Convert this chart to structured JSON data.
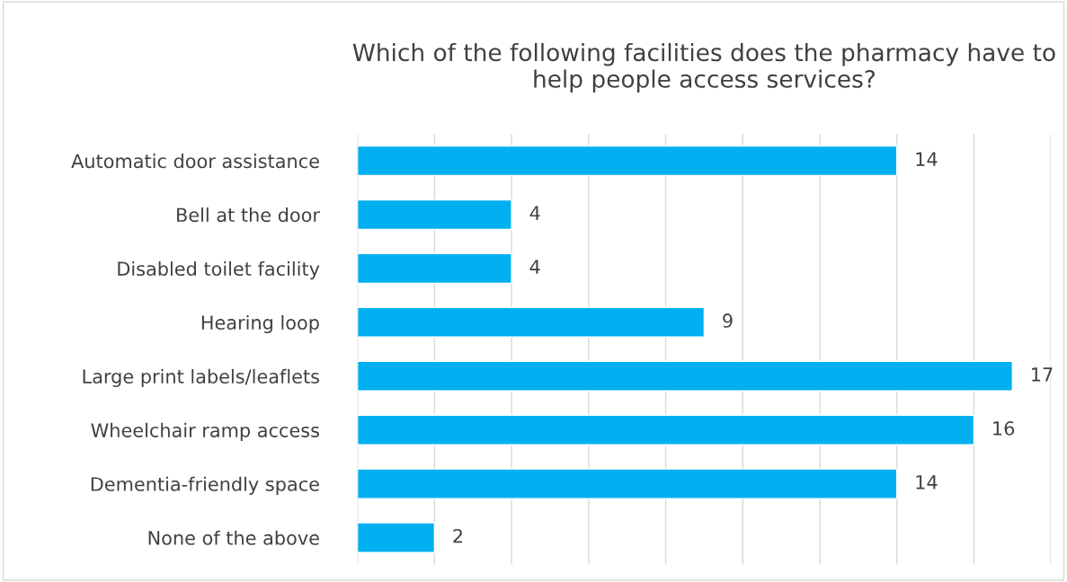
{
  "chart_data": {
    "type": "bar",
    "orientation": "horizontal",
    "title": "Which of the following facilities does the pharmacy have to help people access services?",
    "categories": [
      "Automatic door assistance",
      "Bell at the door",
      "Disabled toilet facility",
      "Hearing loop",
      "Large print labels/leaflets",
      "Wheelchair ramp access",
      "Dementia-friendly space",
      "None of the above"
    ],
    "values": [
      14,
      4,
      4,
      9,
      17,
      16,
      14,
      2
    ],
    "color": "#00b0f0",
    "xlim": [
      0,
      18
    ],
    "xticks": [
      {
        "value": 0,
        "label": null
      },
      {
        "value": 2,
        "label": null
      },
      {
        "value": 4,
        "label": null
      },
      {
        "value": 6,
        "label": null
      },
      {
        "value": 8,
        "label": null
      },
      {
        "value": 10,
        "label": null
      },
      {
        "value": 12,
        "label": null
      },
      {
        "value": 14,
        "label": null
      },
      {
        "value": 16,
        "label": null
      },
      {
        "value": 18,
        "label": null
      }
    ],
    "grid": "x",
    "tick_labels": "y",
    "data_labels": true
  }
}
